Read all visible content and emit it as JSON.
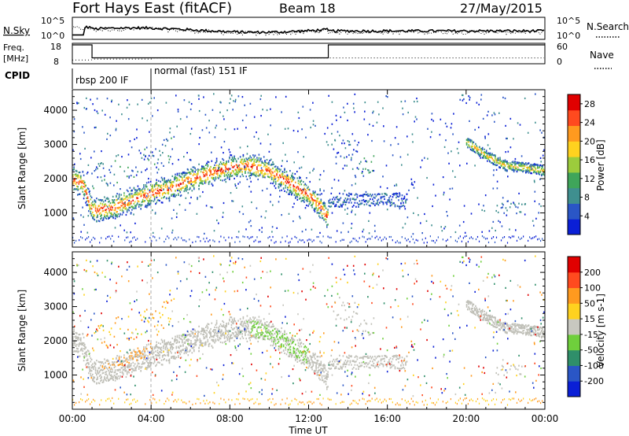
{
  "header": {
    "station": "Fort Hays East (fitACF)",
    "beam": "Beam 18",
    "date": "27/May/2015"
  },
  "top_panels": {
    "nsky_label": "N.Sky",
    "nsky_ticks": [
      "10^5",
      "10^0"
    ],
    "nsearch_label": "N.Search",
    "nsearch_ticks": [
      "10^5",
      "10^0"
    ],
    "freq_label": "Freq.",
    "freq_unit": "[MHz]",
    "freq_ticks": [
      "18",
      "8"
    ],
    "nave_label": "Nave",
    "nave_ticks": [
      "60",
      "0"
    ],
    "cpid_label": "CPID",
    "cpid_modes": [
      {
        "name": "rbsp 200 IF",
        "start_hour": 0,
        "end_hour": 4
      },
      {
        "name": "normal (fast) 151 IF",
        "start_hour": 4,
        "end_hour": 24
      }
    ],
    "freq_series_mhz": [
      {
        "start_hour": 0,
        "end_hour": 1,
        "value": 18
      },
      {
        "start_hour": 1,
        "end_hour": 13,
        "value": 10.5
      },
      {
        "start_hour": 13,
        "end_hour": 24,
        "value": 18
      }
    ]
  },
  "chart_data": [
    {
      "type": "heatmap",
      "title": "Power",
      "xlabel": "Time UT",
      "ylabel": "Slant Range [km]",
      "xlim": [
        0,
        24
      ],
      "ylim": [
        0,
        4600
      ],
      "x_ticks": [
        "00:00",
        "04:00",
        "08:00",
        "12:00",
        "16:00",
        "20:00",
        "00:00"
      ],
      "y_ticks": [
        1000,
        2000,
        3000,
        4000
      ],
      "colorbar": {
        "label": "Power [dB]",
        "ticks": [
          4,
          8,
          12,
          16,
          20,
          24,
          28
        ],
        "range": [
          0,
          30
        ],
        "colors": [
          "#0a1fd6",
          "#2a56c6",
          "#3f8f8f",
          "#3fa55a",
          "#9ccc3c",
          "#ffd21f",
          "#ff9a1f",
          "#ff4a1f",
          "#e00000"
        ]
      },
      "main_echo_band_km": {
        "time_hour": [
          0,
          0.5,
          1,
          2,
          3,
          4,
          5,
          6,
          7,
          8,
          9,
          10,
          11,
          12,
          12.5,
          13
        ],
        "range_km": [
          2000,
          1900,
          1100,
          1150,
          1400,
          1600,
          1750,
          2000,
          2200,
          2350,
          2400,
          2250,
          1900,
          1550,
          1250,
          850
        ]
      },
      "late_echo_band_km": {
        "time_hour": [
          20,
          21,
          22,
          23,
          24
        ],
        "range_km": [
          3100,
          2700,
          2400,
          2350,
          2250
        ]
      }
    },
    {
      "type": "heatmap",
      "title": "Velocity",
      "xlabel": "Time UT",
      "ylabel": "Slant Range [km]",
      "xlim": [
        0,
        24
      ],
      "ylim": [
        0,
        4600
      ],
      "x_ticks": [
        "00:00",
        "04:00",
        "08:00",
        "12:00",
        "16:00",
        "20:00",
        "00:00"
      ],
      "y_ticks": [
        1000,
        2000,
        3000,
        4000
      ],
      "colorbar": {
        "label": "Velocity [m s-1]",
        "ticks": [
          200,
          100,
          50,
          15,
          -15,
          -50,
          -100,
          -200
        ],
        "colors": [
          "#0a1fd6",
          "#2a56c6",
          "#2f8f6a",
          "#6fcf3c",
          "#c8c8c0",
          "#ffd21f",
          "#ff9a1f",
          "#ff4a1f",
          "#e00000"
        ]
      },
      "ground_scatter_color": "#c0c0b8"
    }
  ],
  "colors": {
    "foreground": "#000000",
    "background": "#ffffff"
  }
}
